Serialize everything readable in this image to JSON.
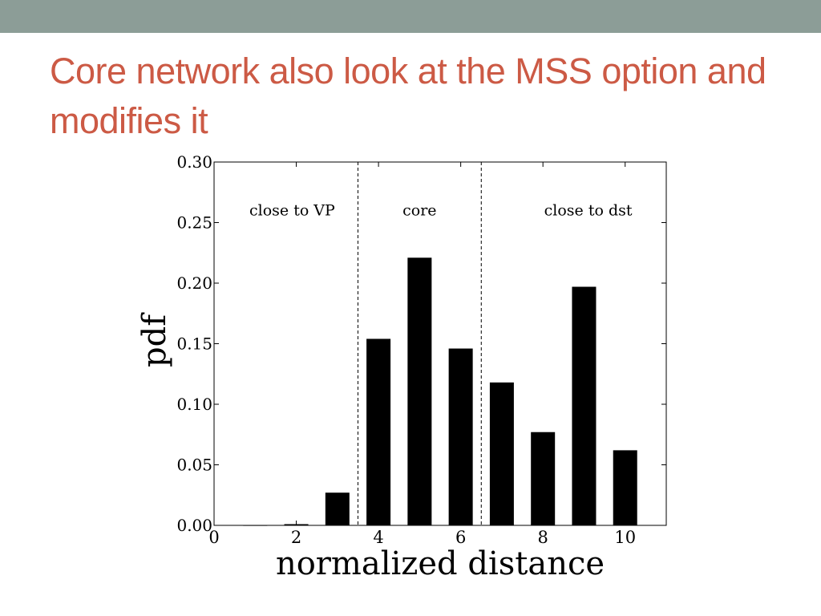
{
  "slide": {
    "title": "Core network also look at the MSS option and modifies it",
    "colors": {
      "band": "#8c9d97",
      "title": "#cc5a45",
      "bars": "#000000"
    }
  },
  "chart_data": {
    "type": "bar",
    "x": [
      1,
      2,
      3,
      4,
      5,
      6,
      7,
      8,
      9,
      10
    ],
    "values": [
      0.0,
      0.001,
      0.027,
      0.154,
      0.221,
      0.146,
      0.118,
      0.077,
      0.197,
      0.062
    ],
    "xlabel": "normalized distance",
    "ylabel": "pdf",
    "xlim": [
      0,
      11
    ],
    "ylim": [
      0,
      0.3
    ],
    "xticks": [
      0,
      2,
      4,
      6,
      8,
      10
    ],
    "xtick_labels": [
      "0",
      "2",
      "4",
      "6",
      "8",
      "10"
    ],
    "yticks": [
      0.0,
      0.05,
      0.1,
      0.15,
      0.2,
      0.25,
      0.3
    ],
    "ytick_labels": [
      "0.00",
      "0.05",
      "0.10",
      "0.15",
      "0.20",
      "0.25",
      "0.30"
    ],
    "dividers": [
      3.5,
      6.5
    ],
    "regions": [
      {
        "label": "close to VP",
        "x": 1.9,
        "y": 0.256
      },
      {
        "label": "core",
        "x": 5.0,
        "y": 0.256
      },
      {
        "label": "close to dst",
        "x": 9.1,
        "y": 0.256
      }
    ],
    "grid": false,
    "legend": "none"
  }
}
